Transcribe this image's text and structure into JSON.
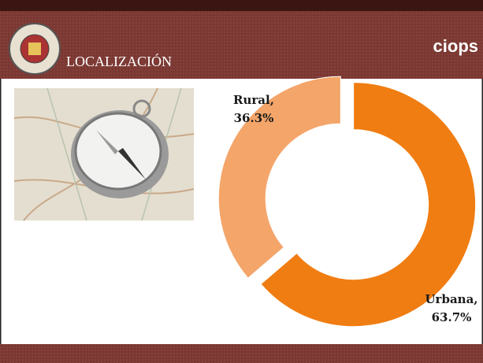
{
  "header": {
    "title": "LOCALIZACIÓN",
    "logo": "ciops"
  },
  "chart_data": {
    "type": "donut",
    "categories": [
      "Rural,",
      "Urbana,"
    ],
    "values": [
      36.3,
      63.7
    ],
    "value_labels": [
      "36.3%",
      "63.7%"
    ],
    "colors": [
      "#f4a56a",
      "#f07d12"
    ]
  }
}
